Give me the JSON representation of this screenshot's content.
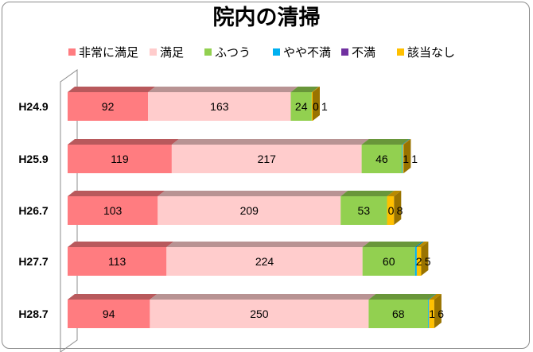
{
  "chart_data": {
    "type": "bar",
    "stacked": true,
    "orientation": "horizontal",
    "title": "院内の清掃",
    "categories": [
      "H24.9",
      "H25.9",
      "H26.7",
      "H27.7",
      "H28.7"
    ],
    "series": [
      {
        "name": "非常に満足",
        "color": "#ff7c80",
        "values": [
          92,
          119,
          103,
          113,
          94
        ]
      },
      {
        "name": "満足",
        "color": "#ffcccc",
        "values": [
          163,
          217,
          209,
          224,
          250
        ]
      },
      {
        "name": "ふつう",
        "color": "#92d050",
        "values": [
          24,
          46,
          53,
          60,
          68
        ]
      },
      {
        "name": "やや不満",
        "color": "#00b0f0",
        "values": [
          0,
          1,
          0,
          2,
          1
        ]
      },
      {
        "name": "不満",
        "color": "#7030a0",
        "values": [
          0,
          0,
          0,
          0,
          0
        ]
      },
      {
        "name": "該当なし",
        "color": "#ffc000",
        "values": [
          1,
          1,
          8,
          5,
          6
        ]
      }
    ],
    "data_labels": [
      [
        "92",
        "163",
        "24",
        "0",
        "",
        "1"
      ],
      [
        "119",
        "217",
        "46",
        "1",
        "",
        "1"
      ],
      [
        "103",
        "209",
        "53",
        "0",
        "",
        "8"
      ],
      [
        "113",
        "224",
        "60",
        "2",
        "",
        "5"
      ],
      [
        "94",
        "250",
        "68",
        "1",
        "",
        "6"
      ]
    ],
    "legend_position": "top",
    "grid": false,
    "style": "3d"
  }
}
